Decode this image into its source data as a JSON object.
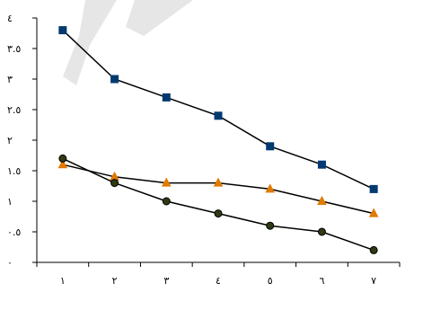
{
  "chart_data": {
    "type": "line",
    "x": [
      1,
      2,
      3,
      4,
      5,
      6,
      7
    ],
    "x_tick_labels": [
      "١",
      "٢",
      "٣",
      "٤",
      "٥",
      "٦",
      "٧"
    ],
    "y_tick_labels": [
      "٠",
      "٠.٥",
      "١",
      "١.٥",
      "٢",
      "٢.٥",
      "٣",
      "٣.٥",
      "٤"
    ],
    "y_ticks": [
      0,
      0.5,
      1,
      1.5,
      2,
      2.5,
      3,
      3.5,
      4
    ],
    "ylim": [
      0,
      4
    ],
    "grid": false,
    "legend": "none",
    "series": [
      {
        "marker": "square",
        "color": "#003a70",
        "values": [
          3.8,
          3.0,
          2.7,
          2.4,
          1.9,
          1.6,
          1.2
        ]
      },
      {
        "marker": "triangle",
        "color": "#e07b00",
        "values": [
          1.6,
          1.4,
          1.3,
          1.3,
          1.2,
          1.0,
          0.8
        ]
      },
      {
        "marker": "circle",
        "color": "#2e3b12",
        "values": [
          1.7,
          1.3,
          1.0,
          0.8,
          0.6,
          0.5,
          0.2
        ]
      }
    ]
  }
}
